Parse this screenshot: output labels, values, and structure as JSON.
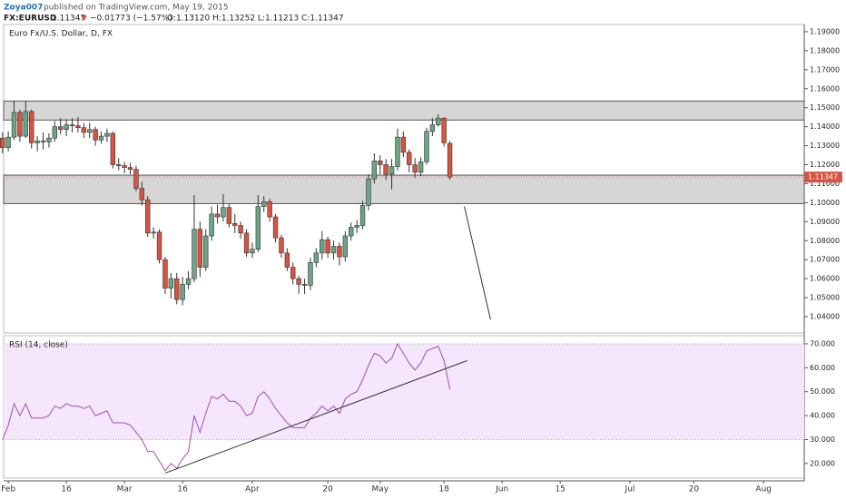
{
  "header": {
    "author": "Zoya007",
    "published": "published on TradingView.com, May 19, 2015",
    "symbol": "FX:EURUSD",
    "price": "1.11347",
    "change": "−0.01773 (−1.57%)",
    "ohlc": "O:1.13120 H:1.13252 L:1.11213 C:1.11347"
  },
  "chart_data": [
    {
      "type": "candlestick",
      "title": "Euro Fx/U.S. Dollar, D, FX",
      "up_color": "#6ba583",
      "down_color": "#d75442",
      "x": [
        -1,
        0,
        1,
        2,
        3,
        4,
        5,
        6,
        7,
        8,
        9,
        10,
        11,
        12,
        13,
        14,
        15,
        16,
        17,
        18,
        19,
        20,
        21,
        22,
        23,
        24,
        25,
        26,
        27,
        28,
        29,
        30,
        31,
        32,
        33,
        34,
        35,
        36,
        37,
        38,
        39,
        40,
        41,
        42,
        43,
        44,
        45,
        46,
        47,
        48,
        49,
        50,
        51,
        52,
        53,
        54,
        55,
        56,
        57,
        58,
        59,
        60,
        61,
        62,
        63,
        64,
        65,
        66,
        67,
        68,
        69,
        70,
        71,
        72,
        73,
        74,
        75,
        76
      ],
      "open": [
        1.134,
        1.129,
        1.1345,
        1.1475,
        1.135,
        1.148,
        1.1315,
        1.1325,
        1.132,
        1.134,
        1.14,
        1.1385,
        1.141,
        1.1405,
        1.1395,
        1.137,
        1.1385,
        1.133,
        1.135,
        1.1365,
        1.12,
        1.1195,
        1.1185,
        1.1175,
        1.1075,
        1.1015,
        1.084,
        1.0845,
        1.07,
        1.055,
        1.06,
        1.049,
        1.057,
        1.06,
        1.086,
        1.066,
        1.0825,
        1.094,
        1.0925,
        1.0975,
        1.089,
        1.088,
        1.084,
        1.0735,
        1.0755,
        1.098,
        1.1005,
        1.0925,
        1.0815,
        1.0735,
        1.066,
        1.06,
        1.057,
        1.0565,
        1.0685,
        1.0735,
        1.0805,
        1.0735,
        1.077,
        1.0715,
        1.0825,
        1.087,
        1.088,
        1.0985,
        1.1125,
        1.122,
        1.12,
        1.115,
        1.119,
        1.1345,
        1.1265,
        1.12,
        1.116,
        1.1215,
        1.1375,
        1.141,
        1.1445,
        1.1312
      ],
      "high": [
        1.137,
        1.1375,
        1.1535,
        1.149,
        1.1535,
        1.149,
        1.135,
        1.137,
        1.1365,
        1.143,
        1.1445,
        1.144,
        1.1445,
        1.145,
        1.142,
        1.142,
        1.14,
        1.1375,
        1.139,
        1.1375,
        1.1235,
        1.1215,
        1.121,
        1.1195,
        1.111,
        1.1035,
        1.087,
        1.086,
        1.0715,
        1.063,
        1.063,
        1.061,
        1.064,
        1.104,
        1.09,
        1.086,
        1.098,
        1.099,
        1.1045,
        1.0995,
        1.094,
        1.09,
        1.086,
        1.079,
        1.104,
        1.1035,
        1.102,
        1.094,
        1.083,
        1.076,
        1.0685,
        1.0615,
        1.06,
        1.071,
        1.076,
        1.085,
        1.082,
        1.08,
        1.079,
        1.085,
        1.0895,
        1.091,
        1.101,
        1.115,
        1.126,
        1.125,
        1.123,
        1.123,
        1.139,
        1.1375,
        1.128,
        1.1235,
        1.124,
        1.1395,
        1.1445,
        1.1465,
        1.145,
        1.13252
      ],
      "low": [
        1.126,
        1.127,
        1.133,
        1.132,
        1.134,
        1.1285,
        1.127,
        1.128,
        1.129,
        1.132,
        1.136,
        1.135,
        1.137,
        1.137,
        1.134,
        1.134,
        1.13,
        1.131,
        1.132,
        1.118,
        1.117,
        1.1155,
        1.115,
        1.106,
        1.0985,
        1.082,
        1.081,
        1.068,
        1.052,
        1.0495,
        1.0465,
        1.046,
        1.0545,
        1.058,
        1.061,
        1.064,
        1.08,
        1.089,
        1.09,
        1.087,
        1.084,
        1.081,
        1.0715,
        1.071,
        1.074,
        1.095,
        1.09,
        1.079,
        1.071,
        1.064,
        1.057,
        1.052,
        1.052,
        1.054,
        1.066,
        1.07,
        1.071,
        1.07,
        1.067,
        1.069,
        1.08,
        1.084,
        1.086,
        1.096,
        1.11,
        1.115,
        1.112,
        1.107,
        1.117,
        1.124,
        1.116,
        1.113,
        1.114,
        1.12,
        1.135,
        1.14,
        1.1295,
        1.11213
      ],
      "close": [
        1.129,
        1.1345,
        1.1475,
        1.135,
        1.148,
        1.1315,
        1.1325,
        1.132,
        1.134,
        1.14,
        1.1385,
        1.141,
        1.1405,
        1.1395,
        1.137,
        1.1385,
        1.133,
        1.135,
        1.1365,
        1.12,
        1.1195,
        1.1185,
        1.1175,
        1.1075,
        1.1015,
        1.084,
        1.0845,
        1.07,
        1.055,
        1.06,
        1.049,
        1.057,
        1.06,
        1.086,
        1.066,
        1.0825,
        1.094,
        1.0925,
        1.0975,
        1.089,
        1.088,
        1.084,
        1.0735,
        1.0755,
        1.098,
        1.1005,
        1.0925,
        1.0815,
        1.0735,
        1.066,
        1.06,
        1.057,
        1.0565,
        1.0685,
        1.0735,
        1.0805,
        1.0735,
        1.077,
        1.0715,
        1.0825,
        1.087,
        1.088,
        1.0985,
        1.1125,
        1.122,
        1.12,
        1.115,
        1.119,
        1.1345,
        1.1265,
        1.12,
        1.116,
        1.1215,
        1.1375,
        1.141,
        1.1445,
        1.1315,
        1.11347
      ],
      "zones": [
        [
          1.1435,
          1.1535
        ],
        [
          1.0995,
          1.1145
        ]
      ],
      "trendlines": [
        {
          "x": [
            78.5,
            83
          ],
          "y": [
            1.098,
            1.0385
          ]
        }
      ],
      "xlim": [
        -0.8,
        137
      ],
      "ylim": [
        1.0314,
        1.1938
      ],
      "xticks": [
        {
          "value": 0,
          "label": "Feb"
        },
        {
          "value": 10,
          "label": "16"
        },
        {
          "value": 20,
          "label": "Mar"
        },
        {
          "value": 30,
          "label": "16"
        },
        {
          "value": 42,
          "label": "Apr"
        },
        {
          "value": 55,
          "label": "20"
        },
        {
          "value": 64,
          "label": "May"
        },
        {
          "value": 75,
          "label": "18"
        },
        {
          "value": 85,
          "label": "Jun"
        },
        {
          "value": 95,
          "label": "15"
        },
        {
          "value": 107,
          "label": "Jul"
        },
        {
          "value": 118,
          "label": "20"
        },
        {
          "value": 130,
          "label": "Aug"
        }
      ],
      "yticks": [
        {
          "value": 1.04,
          "label": "1.04000"
        },
        {
          "value": 1.05,
          "label": "1.05000"
        },
        {
          "value": 1.06,
          "label": "1.06000"
        },
        {
          "value": 1.07,
          "label": "1.07000"
        },
        {
          "value": 1.08,
          "label": "1.08000"
        },
        {
          "value": 1.09,
          "label": "1.09000"
        },
        {
          "value": 1.1,
          "label": "1.10000"
        },
        {
          "value": 1.11,
          "label": "1.11000"
        },
        {
          "value": 1.12,
          "label": "1.12000"
        },
        {
          "value": 1.13,
          "label": "1.13000"
        },
        {
          "value": 1.14,
          "label": "1.14000"
        },
        {
          "value": 1.15,
          "label": "1.15000"
        },
        {
          "value": 1.16,
          "label": "1.16000"
        },
        {
          "value": 1.17,
          "label": "1.17000"
        },
        {
          "value": 1.18,
          "label": "1.18000"
        },
        {
          "value": 1.19,
          "label": "1.19000"
        }
      ]
    },
    {
      "type": "line",
      "title": "RSI (14, close)",
      "color": "#9c4fb0",
      "band": [
        30,
        70
      ],
      "band_color": "#f5e6fb",
      "x": [
        -1,
        0,
        1,
        2,
        3,
        4,
        5,
        6,
        7,
        8,
        9,
        10,
        11,
        12,
        13,
        14,
        15,
        16,
        17,
        18,
        19,
        20,
        21,
        22,
        23,
        24,
        25,
        26,
        27,
        28,
        29,
        30,
        31,
        32,
        33,
        34,
        35,
        36,
        37,
        38,
        39,
        40,
        41,
        42,
        43,
        44,
        45,
        46,
        47,
        48,
        49,
        50,
        51,
        52,
        53,
        54,
        55,
        56,
        57,
        58,
        59,
        60,
        61,
        62,
        63,
        64,
        65,
        66,
        67,
        68,
        69,
        70,
        71,
        72,
        73,
        74,
        75,
        76
      ],
      "values": [
        30,
        36,
        45,
        40,
        45,
        39,
        39,
        39,
        40,
        44,
        43,
        45,
        44,
        44,
        43,
        44,
        40,
        41,
        42,
        37,
        37,
        37,
        36,
        33,
        30,
        25,
        25,
        21,
        17,
        20,
        18,
        22,
        25,
        40,
        33,
        41,
        48,
        47,
        49,
        46,
        46,
        44,
        40,
        41,
        48,
        50,
        47,
        43,
        40,
        37,
        35,
        35,
        35,
        39,
        41,
        44,
        42,
        44,
        41,
        47,
        49,
        50,
        55,
        61,
        66,
        65,
        62,
        64,
        70,
        66,
        62,
        59,
        62,
        67,
        68,
        69,
        63,
        51
      ],
      "trendlines": [
        {
          "x": [
            27,
            79
          ],
          "y": [
            16,
            63
          ]
        }
      ],
      "xlim": [
        -0.8,
        137
      ],
      "ylim": [
        13.9,
        73.4
      ],
      "yticks": [
        {
          "value": 20,
          "label": "20.000"
        },
        {
          "value": 30,
          "label": "30.000"
        },
        {
          "value": 40,
          "label": "40.000"
        },
        {
          "value": 50,
          "label": "50.000"
        },
        {
          "value": 60,
          "label": "60.000"
        },
        {
          "value": 70,
          "label": "70.000"
        }
      ]
    }
  ]
}
